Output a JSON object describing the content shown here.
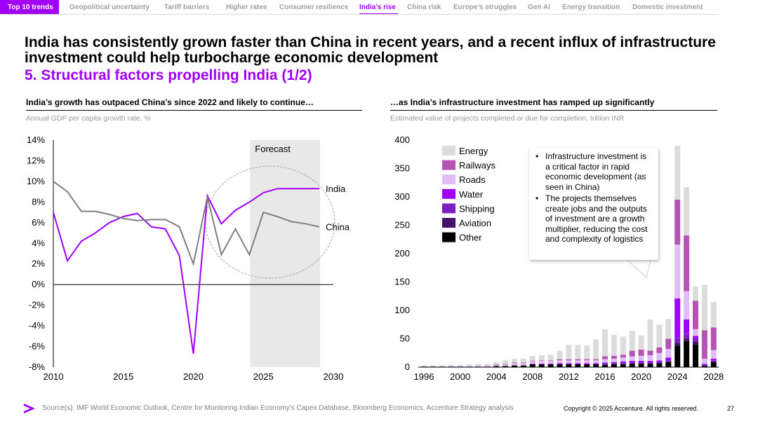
{
  "nav": {
    "items": [
      "Top 10 trends",
      "Geopolitical uncertainty",
      "Tariff barriers",
      "Higher rates",
      "Consumer resilience",
      "India’s rise",
      "China risk",
      "Europe’s struggles",
      "Gen AI",
      "Energy transition",
      "Domestic investment"
    ],
    "active_index": 5
  },
  "header": {
    "title": "India has consistently grown faster than China in recent years, and a recent influx of infrastructure investment could help turbocharge economic development",
    "subtitle": "5. Structural factors propelling India (1/2)"
  },
  "left_panel": {
    "title": "India’s growth has outpaced China’s since 2022 and likely to continue…",
    "subtitle": "Annual GDP per capita growth rate, %",
    "forecast_label": "Forecast"
  },
  "right_panel": {
    "title": "…as India’s infrastructure investment has ramped up significantly",
    "subtitle": "Estimated value of projects completed or due for completion, trillion INR",
    "callout_items": [
      "Infrastructure investment is a critical factor in rapid economic development (as seen in China)",
      "The projects themselves create jobs and the outputs of investment are a growth multiplier, reducing the cost and complexity of logistics"
    ]
  },
  "footer": {
    "source": "Source(s): IMF World Economic Outlook, Centre for Monitoring Indian Economy’s Capex Database, Bloomberg Economics, Accenture Strategy analysis",
    "copyright": "Copyright © 2025 Accenture. All rights reserved.",
    "page_number": "27"
  },
  "colors": {
    "accent": "#a100ff",
    "india": "#a100ff",
    "china": "#7f7f7f",
    "Energy": "#dcdcdc",
    "Railways": "#b554b5",
    "Roads": "#e1bdf5",
    "Water": "#a100ff",
    "Shipping": "#7b1fc4",
    "Aviation": "#46106b",
    "Other": "#000000"
  },
  "chart_data": [
    {
      "type": "line",
      "title": "India’s growth has outpaced China’s since 2022 and likely to continue…",
      "ylabel": "Annual GDP per capita growth rate, %",
      "ylim": [
        -8,
        14
      ],
      "xlim": [
        2010,
        2030
      ],
      "x_ticks": [
        2010,
        2015,
        2020,
        2025,
        2030
      ],
      "y_ticks": [
        -8,
        -6,
        -4,
        -2,
        0,
        2,
        4,
        6,
        8,
        10,
        12,
        14
      ],
      "y_tick_labels": [
        "-8%",
        "-6%",
        "-4%",
        "-2%",
        "0%",
        "2%",
        "4%",
        "6%",
        "8%",
        "10%",
        "12%",
        "14%"
      ],
      "forecast_range": [
        2024,
        2029
      ],
      "x": [
        2010,
        2011,
        2012,
        2013,
        2014,
        2015,
        2016,
        2017,
        2018,
        2019,
        2020,
        2021,
        2022,
        2023,
        2024,
        2025,
        2026,
        2027,
        2028,
        2029
      ],
      "series": [
        {
          "name": "India",
          "values": [
            7.0,
            2.3,
            4.2,
            5.0,
            6.0,
            6.6,
            6.9,
            5.6,
            5.4,
            2.8,
            -6.7,
            8.6,
            5.9,
            7.2,
            8.0,
            8.9,
            9.3,
            9.3,
            9.3,
            9.3
          ]
        },
        {
          "name": "China",
          "values": [
            10.0,
            9.0,
            7.1,
            7.1,
            6.8,
            6.4,
            6.2,
            6.3,
            6.3,
            5.6,
            2.0,
            8.5,
            2.9,
            5.4,
            2.9,
            7.0,
            6.6,
            6.1,
            5.9,
            5.6
          ]
        }
      ]
    },
    {
      "type": "bar",
      "stacked": true,
      "title": "…as India’s infrastructure investment has ramped up significantly",
      "ylabel": "Estimated value of projects completed or due for completion, trillion INR",
      "ylim": [
        0,
        400
      ],
      "y_ticks": [
        0,
        50,
        100,
        150,
        200,
        250,
        300,
        350,
        400
      ],
      "x_tick_labels": [
        "1996",
        "2000",
        "2004",
        "2008",
        "2012",
        "2016",
        "2020",
        "2024",
        "2028"
      ],
      "categories": [
        1996,
        1997,
        1998,
        1999,
        2000,
        2001,
        2002,
        2003,
        2004,
        2005,
        2006,
        2007,
        2008,
        2009,
        2010,
        2011,
        2012,
        2013,
        2014,
        2015,
        2016,
        2017,
        2018,
        2019,
        2020,
        2021,
        2022,
        2023,
        2024,
        2025,
        2026,
        2027,
        2028
      ],
      "series": [
        {
          "name": "Other",
          "values": [
            1,
            1,
            1,
            1,
            1,
            1,
            1,
            1,
            2,
            2,
            3,
            3,
            5,
            5,
            5,
            5,
            5,
            5,
            5,
            5,
            4,
            5,
            5,
            6,
            6,
            6,
            7,
            8,
            38,
            46,
            40,
            2,
            8
          ]
        },
        {
          "name": "Aviation",
          "values": [
            0,
            0,
            0,
            0,
            0,
            0,
            0,
            0,
            0,
            0,
            0,
            0,
            0,
            0,
            0,
            0,
            0,
            0,
            0,
            0,
            1,
            1,
            1,
            1,
            1,
            1,
            1,
            2,
            5,
            5,
            5,
            1,
            2
          ]
        },
        {
          "name": "Shipping",
          "values": [
            0,
            0,
            0,
            0,
            0,
            0,
            0,
            0,
            0,
            0,
            0,
            0,
            0,
            0,
            0,
            0,
            0,
            0,
            0,
            0,
            1,
            1,
            1,
            1,
            1,
            1,
            1,
            2,
            8,
            8,
            6,
            1,
            2
          ]
        },
        {
          "name": "Water",
          "values": [
            0,
            0,
            0,
            0,
            0,
            0,
            0,
            0,
            0,
            0,
            0,
            0,
            1,
            1,
            1,
            2,
            2,
            2,
            2,
            2,
            2,
            2,
            3,
            3,
            3,
            3,
            3,
            5,
            70,
            25,
            4,
            2,
            3
          ]
        },
        {
          "name": "Roads",
          "values": [
            1,
            1,
            1,
            1,
            1,
            1,
            2,
            2,
            2,
            3,
            4,
            4,
            4,
            5,
            5,
            5,
            5,
            5,
            5,
            5,
            6,
            6,
            7,
            8,
            9,
            10,
            13,
            15,
            95,
            50,
            12,
            9,
            15
          ]
        },
        {
          "name": "Railways",
          "values": [
            0,
            0,
            0,
            0,
            0,
            0,
            0,
            0,
            1,
            1,
            1,
            1,
            1,
            1,
            1,
            2,
            2,
            2,
            2,
            2,
            5,
            5,
            5,
            10,
            11,
            8,
            10,
            18,
            79,
            98,
            50,
            50,
            40
          ]
        },
        {
          "name": "Energy",
          "values": [
            1,
            1,
            1,
            2,
            2,
            3,
            3,
            3,
            4,
            6,
            7,
            7,
            9,
            9,
            10,
            15,
            25,
            25,
            24,
            35,
            48,
            37,
            32,
            35,
            25,
            55,
            40,
            35,
            95,
            85,
            25,
            80,
            45
          ]
        }
      ],
      "legend": [
        "Energy",
        "Railways",
        "Roads",
        "Water",
        "Shipping",
        "Aviation",
        "Other"
      ]
    }
  ]
}
